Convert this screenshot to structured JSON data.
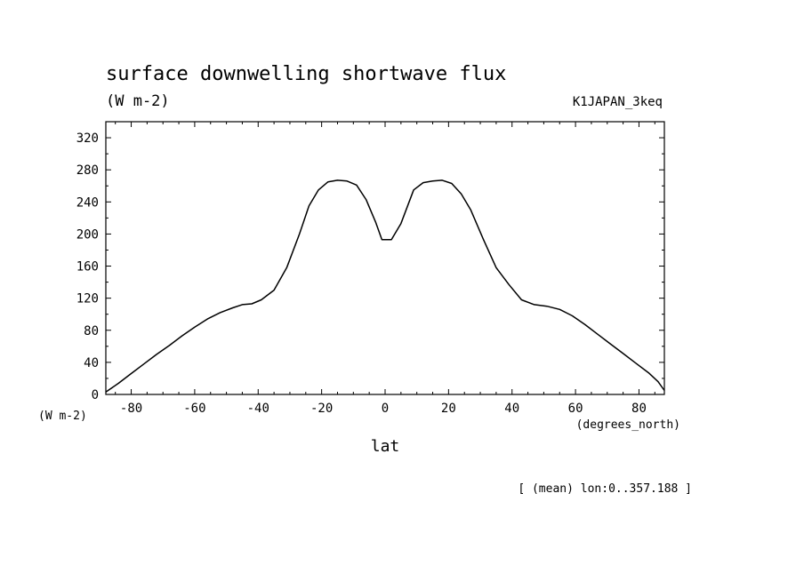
{
  "chart_data": {
    "type": "line",
    "title": "surface downwelling shortwave flux",
    "subtitle": "(W m-2)",
    "dataset_label": "K1JAPAN_3keq",
    "ylabel_units": "(W m-2)",
    "xlabel_units": "(degrees_north)",
    "xlabel": "lat",
    "footer": "[ (mean) lon:0..357.188 ]",
    "xlim": [
      -88,
      88
    ],
    "ylim": [
      0,
      340
    ],
    "x_ticks": [
      -80,
      -60,
      -40,
      -20,
      0,
      20,
      40,
      60,
      80
    ],
    "x_tick_labels": [
      "-80",
      "-60",
      "-40",
      "-20",
      "0",
      "20",
      "40",
      "60",
      "80"
    ],
    "y_ticks": [
      0,
      40,
      80,
      120,
      160,
      200,
      240,
      280,
      320
    ],
    "y_tick_labels": [
      "0",
      "40",
      "80",
      "120",
      "160",
      "200",
      "240",
      "280",
      "320"
    ],
    "grid": false,
    "line_color": "#000000",
    "series": [
      {
        "x": [
          -88,
          -84,
          -80,
          -76,
          -72,
          -68,
          -64,
          -60,
          -56,
          -52,
          -48,
          -45,
          -42,
          -39,
          -35,
          -31,
          -27,
          -24,
          -21,
          -18,
          -15,
          -12,
          -9,
          -6,
          -3,
          -1,
          2,
          5,
          9,
          12,
          15,
          18,
          21,
          24,
          27,
          31,
          35,
          39,
          43,
          47,
          51,
          55,
          59,
          63,
          67,
          71,
          75,
          79,
          83,
          86,
          88
        ],
        "y": [
          3,
          14,
          26,
          38,
          50,
          61,
          73,
          84,
          94,
          102,
          108,
          112,
          113,
          118,
          130,
          158,
          200,
          235,
          255,
          265,
          267,
          266,
          261,
          243,
          215,
          193,
          193,
          213,
          255,
          264,
          266,
          267,
          263,
          250,
          230,
          193,
          158,
          137,
          118,
          112,
          110,
          106,
          98,
          87,
          75,
          63,
          51,
          39,
          27,
          16,
          5
        ]
      }
    ]
  }
}
